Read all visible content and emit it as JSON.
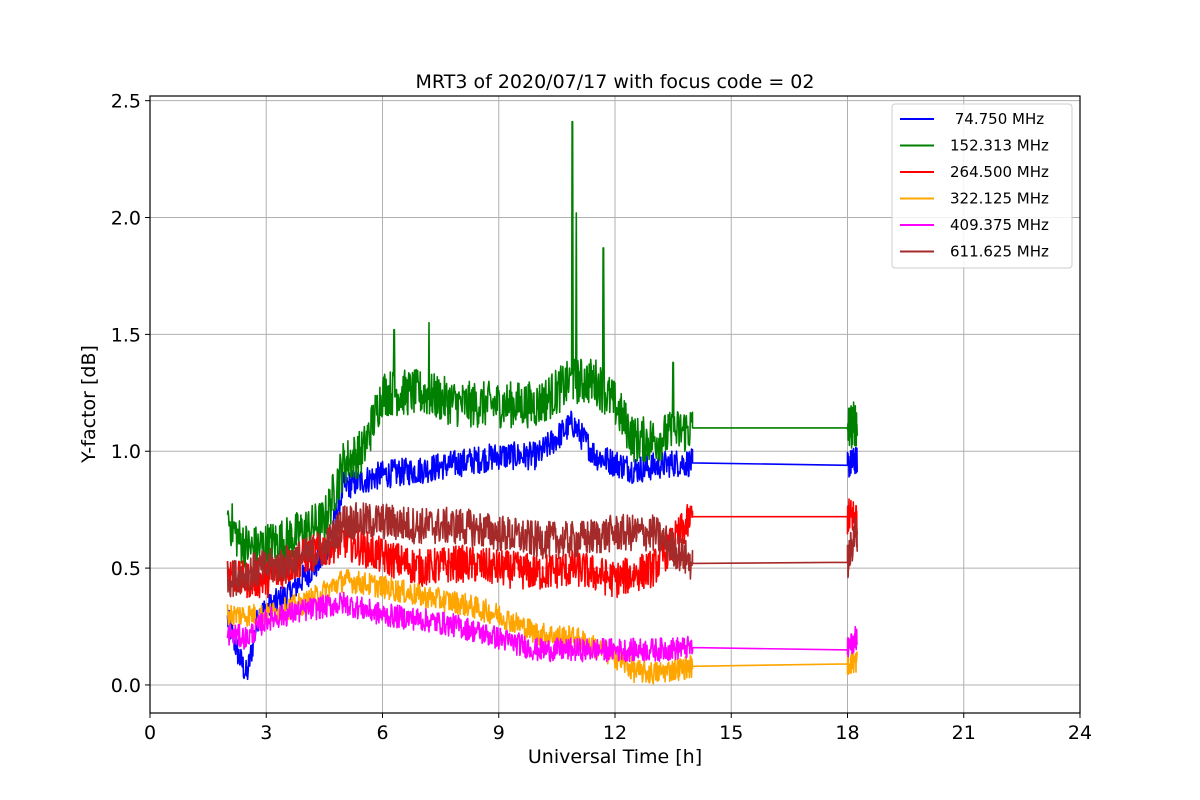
{
  "chart_data": {
    "type": "line",
    "title": "MRT3 of 2020/07/17 with focus code = 02",
    "xlabel": "Universal Time [h]",
    "ylabel": "Y-factor [dB]",
    "xlim": [
      0,
      24
    ],
    "ylim": [
      -0.12,
      2.52
    ],
    "xticks": [
      0,
      3,
      6,
      9,
      12,
      15,
      18,
      21,
      24
    ],
    "yticks": [
      0.0,
      0.5,
      1.0,
      1.5,
      2.0,
      2.5
    ],
    "xtick_labels": [
      "0",
      "3",
      "6",
      "9",
      "12",
      "15",
      "18",
      "21",
      "24"
    ],
    "ytick_labels": [
      "0.0",
      "0.5",
      "1.0",
      "1.5",
      "2.0",
      "2.5"
    ],
    "grid": true,
    "legend_position": "top-right",
    "series": [
      {
        "name": " 74.750 MHz",
        "color": "#0000ff",
        "points": [
          [
            2.0,
            0.28
          ],
          [
            2.3,
            0.12
          ],
          [
            2.5,
            0.04
          ],
          [
            2.8,
            0.3
          ],
          [
            3.5,
            0.38
          ],
          [
            4.5,
            0.55
          ],
          [
            5.0,
            0.85
          ],
          [
            6.0,
            0.9
          ],
          [
            7.0,
            0.92
          ],
          [
            8.0,
            0.95
          ],
          [
            9.0,
            0.98
          ],
          [
            10.0,
            0.98
          ],
          [
            10.9,
            1.12
          ],
          [
            11.5,
            0.98
          ],
          [
            12.5,
            0.92
          ],
          [
            13.5,
            0.95
          ],
          [
            14.0,
            0.95
          ],
          [
            18.0,
            0.94
          ],
          [
            18.2,
            0.96
          ]
        ],
        "noise": 0.06
      },
      {
        "name": "152.313 MHz",
        "color": "#008000",
        "points": [
          [
            2.0,
            0.72
          ],
          [
            2.3,
            0.62
          ],
          [
            2.6,
            0.58
          ],
          [
            3.5,
            0.62
          ],
          [
            4.5,
            0.7
          ],
          [
            5.0,
            0.95
          ],
          [
            5.5,
            1.0
          ],
          [
            6.0,
            1.25
          ],
          [
            7.0,
            1.25
          ],
          [
            8.0,
            1.2
          ],
          [
            9.0,
            1.2
          ],
          [
            10.0,
            1.2
          ],
          [
            10.9,
            1.3
          ],
          [
            11.5,
            1.3
          ],
          [
            12.0,
            1.2
          ],
          [
            12.5,
            1.05
          ],
          [
            13.0,
            1.05
          ],
          [
            14.0,
            1.1
          ],
          [
            18.0,
            1.1
          ],
          [
            18.2,
            1.12
          ]
        ],
        "noise": 0.1,
        "spikes": [
          [
            10.9,
            2.41
          ],
          [
            11.0,
            2.02
          ],
          [
            11.7,
            1.87
          ],
          [
            7.2,
            1.55
          ],
          [
            6.3,
            1.52
          ],
          [
            13.5,
            1.38
          ]
        ]
      },
      {
        "name": "264.500 MHz",
        "color": "#ff0000",
        "points": [
          [
            2.0,
            0.5
          ],
          [
            2.3,
            0.45
          ],
          [
            3.0,
            0.45
          ],
          [
            4.0,
            0.55
          ],
          [
            5.0,
            0.62
          ],
          [
            6.0,
            0.55
          ],
          [
            7.0,
            0.5
          ],
          [
            8.0,
            0.52
          ],
          [
            9.0,
            0.5
          ],
          [
            10.0,
            0.48
          ],
          [
            11.0,
            0.5
          ],
          [
            12.0,
            0.45
          ],
          [
            13.0,
            0.5
          ],
          [
            14.0,
            0.72
          ],
          [
            18.0,
            0.72
          ],
          [
            18.2,
            0.72
          ]
        ],
        "noise": 0.08
      },
      {
        "name": "322.125 MHz",
        "color": "#ffa500",
        "points": [
          [
            2.0,
            0.3
          ],
          [
            3.0,
            0.3
          ],
          [
            4.0,
            0.35
          ],
          [
            5.0,
            0.45
          ],
          [
            6.0,
            0.42
          ],
          [
            7.0,
            0.38
          ],
          [
            8.0,
            0.35
          ],
          [
            9.0,
            0.3
          ],
          [
            10.0,
            0.22
          ],
          [
            11.0,
            0.2
          ],
          [
            12.0,
            0.12
          ],
          [
            12.5,
            0.06
          ],
          [
            13.0,
            0.05
          ],
          [
            14.0,
            0.08
          ],
          [
            18.0,
            0.09
          ],
          [
            18.2,
            0.1
          ]
        ],
        "noise": 0.05
      },
      {
        "name": "409.375 MHz",
        "color": "#ff00ff",
        "points": [
          [
            2.0,
            0.22
          ],
          [
            2.5,
            0.2
          ],
          [
            3.0,
            0.28
          ],
          [
            4.0,
            0.32
          ],
          [
            5.0,
            0.35
          ],
          [
            6.0,
            0.3
          ],
          [
            7.0,
            0.28
          ],
          [
            8.0,
            0.25
          ],
          [
            9.0,
            0.2
          ],
          [
            10.0,
            0.15
          ],
          [
            11.0,
            0.15
          ],
          [
            12.0,
            0.15
          ],
          [
            13.0,
            0.15
          ],
          [
            14.0,
            0.16
          ],
          [
            18.0,
            0.15
          ],
          [
            18.2,
            0.2
          ]
        ],
        "noise": 0.05
      },
      {
        "name": "611.625 MHz",
        "color": "#a52a2a",
        "points": [
          [
            2.0,
            0.45
          ],
          [
            2.5,
            0.48
          ],
          [
            3.5,
            0.52
          ],
          [
            4.5,
            0.58
          ],
          [
            5.0,
            0.7
          ],
          [
            6.0,
            0.7
          ],
          [
            7.0,
            0.68
          ],
          [
            8.0,
            0.68
          ],
          [
            9.0,
            0.65
          ],
          [
            10.0,
            0.62
          ],
          [
            11.0,
            0.62
          ],
          [
            12.0,
            0.65
          ],
          [
            13.0,
            0.65
          ],
          [
            14.0,
            0.52
          ],
          [
            18.0,
            0.525
          ],
          [
            18.2,
            0.65
          ]
        ],
        "noise": 0.08
      }
    ]
  }
}
